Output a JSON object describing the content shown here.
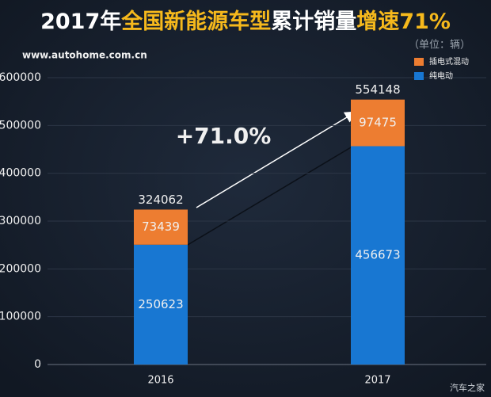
{
  "chart_data": {
    "type": "stacked-bar",
    "title": [
      "2017年",
      "全国新能源车型",
      "累计销量",
      "增速71%"
    ],
    "subtitle": "（单位：辆）",
    "source": "www.autohome.com.cn",
    "watermark": "汽车之家",
    "annotation": "+71.0%",
    "categories": [
      "2016",
      "2017"
    ],
    "series": [
      {
        "name": "纯电动",
        "color": "#1877d2",
        "values": [
          250623,
          456673
        ]
      },
      {
        "name": "插电式混动",
        "color": "#ed7d31",
        "values": [
          73439,
          97475
        ]
      }
    ],
    "totals": [
      324062,
      554148
    ],
    "ylim": [
      0,
      600000
    ],
    "yticks": [
      0,
      100000,
      200000,
      300000,
      400000,
      500000,
      600000
    ],
    "grid": true,
    "legend": "top-right"
  }
}
